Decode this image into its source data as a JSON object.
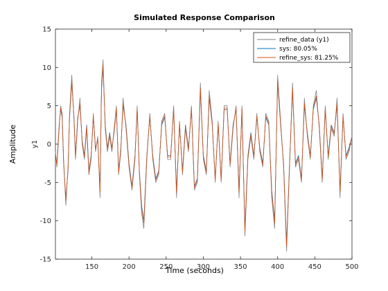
{
  "chart_data": {
    "type": "line",
    "title": "Simulated Response Comparison",
    "xlabel": "Time (seconds)",
    "ylabel": "Amplitude",
    "output_label": "y1",
    "xlim": [
      101,
      500
    ],
    "ylim": [
      -15,
      15
    ],
    "xticks": [
      150,
      200,
      250,
      300,
      350,
      400,
      450,
      500
    ],
    "yticks": [
      -15,
      -10,
      -5,
      0,
      5,
      10,
      15
    ],
    "grid": false,
    "legend_position": "top-right",
    "series": [
      {
        "name": "refine_data (y1)",
        "color": "#7f7f7f",
        "x": [
          101,
          103,
          106,
          108,
          110,
          112,
          115,
          118,
          120,
          123,
          126,
          128,
          131,
          134,
          137,
          140,
          143,
          146,
          149,
          152,
          155,
          158,
          161,
          163,
          165,
          168,
          171,
          174,
          177,
          180,
          183,
          186,
          189,
          192,
          196,
          200,
          204,
          208,
          211,
          214,
          217,
          220,
          224,
          228,
          232,
          236,
          240,
          244,
          248,
          252,
          256,
          260,
          264,
          268,
          272,
          276,
          280,
          284,
          288,
          292,
          296,
          300,
          304,
          308,
          312,
          316,
          320,
          324,
          328,
          332,
          336,
          340,
          344,
          348,
          352,
          356,
          360,
          364,
          368,
          372,
          376,
          380,
          384,
          388,
          392,
          396,
          400,
          404,
          408,
          412,
          416,
          420,
          424,
          428,
          432,
          436,
          440,
          444,
          448,
          452,
          456,
          460,
          464,
          468,
          472,
          476,
          480,
          484,
          488,
          492,
          496,
          500
        ],
        "y": [
          -1,
          -3,
          2,
          5,
          4,
          -2,
          -8,
          -3,
          4,
          9,
          3,
          -2,
          3,
          6,
          0,
          -2,
          2,
          -4,
          -2,
          4,
          -1,
          1,
          -7,
          8,
          11,
          2,
          -1,
          1,
          -1,
          2,
          5,
          -4,
          -1,
          6,
          2,
          -3,
          -6,
          -2,
          5,
          -4,
          -9,
          -11,
          -2,
          4,
          -2,
          -5,
          -4,
          3,
          4,
          -2,
          -2,
          5,
          -7,
          3,
          -4,
          2,
          -1,
          5,
          -6,
          -5,
          8,
          -2,
          -4,
          7,
          3,
          -5,
          3,
          -5,
          5,
          5,
          -3,
          2,
          5,
          -7,
          5,
          -12,
          -2,
          1,
          -2,
          4,
          -1,
          -3,
          4,
          3,
          -7,
          -11,
          9,
          3,
          -3,
          -14,
          -3,
          8,
          -3,
          -2,
          -5,
          6,
          1,
          -2,
          5,
          7,
          2,
          -5,
          5,
          -2,
          2,
          1,
          6,
          -7,
          4,
          -2,
          -1,
          1
        ],
        "_note": ""
      },
      {
        "name": "sys: 80.05%",
        "color": "#0072bd",
        "x": [
          101,
          103,
          106,
          108,
          110,
          112,
          115,
          118,
          120,
          123,
          126,
          128,
          131,
          134,
          137,
          140,
          143,
          146,
          149,
          152,
          155,
          158,
          161,
          163,
          165,
          168,
          171,
          174,
          177,
          180,
          183,
          186,
          189,
          192,
          196,
          200,
          204,
          208,
          211,
          214,
          217,
          220,
          224,
          228,
          232,
          236,
          240,
          244,
          248,
          252,
          256,
          260,
          264,
          268,
          272,
          276,
          280,
          284,
          288,
          292,
          296,
          300,
          304,
          308,
          312,
          316,
          320,
          324,
          328,
          332,
          336,
          340,
          344,
          348,
          352,
          356,
          360,
          364,
          368,
          372,
          376,
          380,
          384,
          388,
          392,
          396,
          400,
          404,
          408,
          412,
          416,
          420,
          424,
          428,
          432,
          436,
          440,
          444,
          448,
          452,
          456,
          460,
          464,
          468,
          472,
          476,
          480,
          484,
          488,
          492,
          496,
          500
        ],
        "y": [
          -1.5,
          -2.5,
          2.5,
          4.5,
          3.5,
          -2.5,
          -7,
          -3.5,
          3.5,
          8,
          3.5,
          -1.5,
          3.5,
          5,
          0.5,
          -1.5,
          2.5,
          -3.5,
          -1.5,
          3.5,
          -0.5,
          0.5,
          -6,
          7,
          10,
          2.5,
          -0.5,
          1.5,
          -0.5,
          1.5,
          4.5,
          -3.5,
          -0.5,
          5,
          2.5,
          -2.5,
          -5.5,
          -1.5,
          4.5,
          -3.5,
          -8,
          -10,
          -1.5,
          3.5,
          -1.5,
          -4.5,
          -3.5,
          2.5,
          3.5,
          -1.5,
          -1.5,
          4.5,
          -6,
          2.5,
          -3.5,
          2.5,
          -0.5,
          4.5,
          -5.5,
          -4.5,
          7,
          -1.5,
          -3.5,
          6,
          2.5,
          -4.5,
          2.5,
          -4.5,
          4.5,
          4.5,
          -2.5,
          2.5,
          4.5,
          -6,
          4.5,
          -11,
          -1.5,
          1.5,
          -1.5,
          3.5,
          -0.5,
          -2.5,
          3.5,
          2.5,
          -6,
          -10,
          8,
          2.5,
          -2.5,
          -13,
          -2.5,
          7,
          -2.5,
          -1.5,
          -4.5,
          5,
          1.5,
          -1.5,
          4.5,
          6,
          2.5,
          -4.5,
          4.5,
          -1.5,
          2.5,
          1.5,
          5,
          -6,
          3.5,
          -1.5,
          -0.5,
          1
        ]
      },
      {
        "name": "refine_sys: 81.25%",
        "color": "#d95319",
        "x": [
          101,
          103,
          106,
          108,
          110,
          112,
          115,
          118,
          120,
          123,
          126,
          128,
          131,
          134,
          137,
          140,
          143,
          146,
          149,
          152,
          155,
          158,
          161,
          163,
          165,
          168,
          171,
          174,
          177,
          180,
          183,
          186,
          189,
          192,
          196,
          200,
          204,
          208,
          211,
          214,
          217,
          220,
          224,
          228,
          232,
          236,
          240,
          244,
          248,
          252,
          256,
          260,
          264,
          268,
          272,
          276,
          280,
          284,
          288,
          292,
          296,
          300,
          304,
          308,
          312,
          316,
          320,
          324,
          328,
          332,
          336,
          340,
          344,
          348,
          352,
          356,
          360,
          364,
          368,
          372,
          376,
          380,
          384,
          388,
          392,
          396,
          400,
          404,
          408,
          412,
          416,
          420,
          424,
          428,
          432,
          436,
          440,
          444,
          448,
          452,
          456,
          460,
          464,
          468,
          472,
          476,
          480,
          484,
          488,
          492,
          496,
          500
        ],
        "y": [
          -1.2,
          -2.7,
          2.3,
          4.7,
          3.7,
          -2.2,
          -7.3,
          -3.2,
          3.7,
          8.3,
          3.3,
          -1.7,
          3.3,
          5.3,
          0.3,
          -1.7,
          2.3,
          -3.7,
          -1.7,
          3.7,
          -0.7,
          0.7,
          -6.3,
          7.3,
          10.3,
          2.3,
          -0.7,
          1.3,
          -0.7,
          1.7,
          4.7,
          -3.7,
          -0.7,
          5.3,
          2.3,
          -2.7,
          -5.7,
          -1.7,
          4.7,
          -3.7,
          -8.3,
          -10.3,
          -1.7,
          3.7,
          -1.7,
          -4.7,
          -3.7,
          2.7,
          3.7,
          -1.7,
          -1.7,
          4.7,
          -6.3,
          2.7,
          -3.7,
          2.3,
          -0.7,
          4.7,
          -5.7,
          -4.7,
          7.3,
          -1.7,
          -3.7,
          6.3,
          2.7,
          -4.7,
          2.7,
          -4.7,
          4.7,
          4.7,
          -2.7,
          2.3,
          4.7,
          -6.3,
          4.7,
          -11.3,
          -1.7,
          1.3,
          -1.7,
          3.7,
          -0.7,
          -2.7,
          3.7,
          2.7,
          -6.3,
          -10.3,
          8.3,
          2.7,
          -2.7,
          -13.3,
          -2.7,
          7.3,
          -2.7,
          -1.7,
          -4.7,
          5.3,
          1.3,
          -1.7,
          4.7,
          6.3,
          2.3,
          -4.7,
          4.7,
          -1.7,
          2.3,
          1.3,
          5.3,
          -6.3,
          3.7,
          -1.7,
          -0.7,
          1
        ]
      }
    ]
  }
}
